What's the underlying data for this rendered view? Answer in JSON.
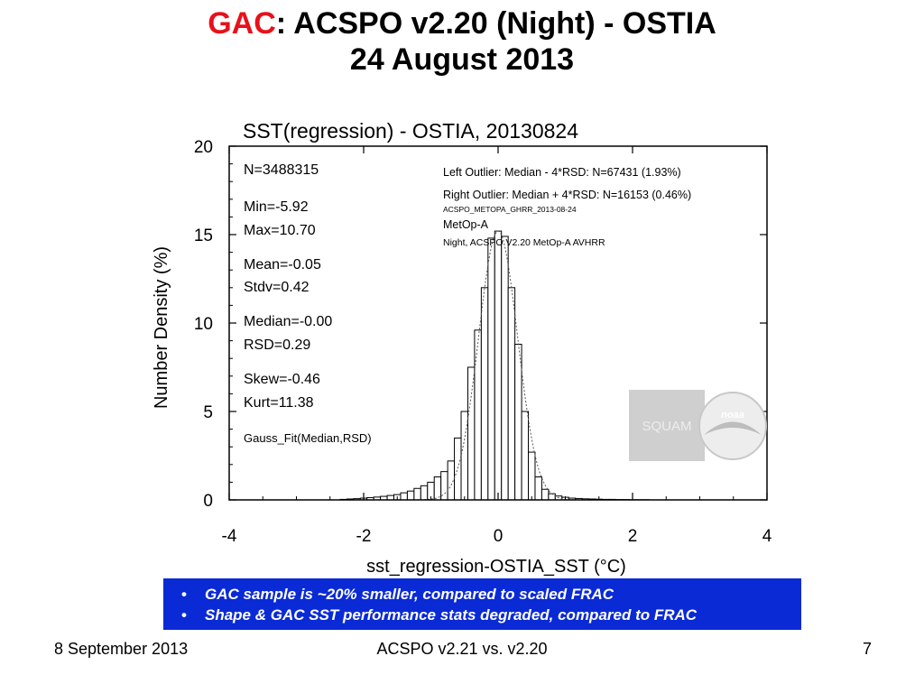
{
  "slide": {
    "title_highlight": "GAC",
    "title_rest": ": ACSPO v2.20 (Night) - OSTIA",
    "subtitle": "24 August 2013"
  },
  "chart_data": {
    "type": "bar",
    "title": "SST(regression) - OSTIA, 20130824",
    "xlabel": "sst_regression-OSTIA_SST (°C)",
    "ylabel": "Number Density (%)",
    "xlim": [
      -4,
      4
    ],
    "ylim": [
      0,
      20
    ],
    "xticks": [
      -4,
      -2,
      0,
      2,
      4
    ],
    "yticks": [
      0,
      5,
      10,
      15,
      20
    ],
    "bin_width": 0.1,
    "grid": false,
    "series": [
      {
        "x": [
          -2.3,
          -2.2,
          -2.1,
          -2.0,
          -1.9,
          -1.8,
          -1.7,
          -1.6,
          -1.5,
          -1.4,
          -1.3,
          -1.2,
          -1.1,
          -1.0,
          -0.9,
          -0.8,
          -0.7,
          -0.6,
          -0.5,
          -0.4,
          -0.3,
          -0.2,
          -0.1,
          0.0,
          0.1,
          0.2,
          0.3,
          0.4,
          0.5,
          0.6,
          0.7,
          0.8,
          0.9,
          1.0,
          1.1,
          1.2,
          1.3,
          1.4,
          1.5,
          1.6,
          1.7,
          1.8,
          1.9,
          2.0,
          2.1,
          2.2
        ],
        "values": [
          0.03,
          0.05,
          0.07,
          0.1,
          0.13,
          0.16,
          0.2,
          0.25,
          0.3,
          0.4,
          0.5,
          0.65,
          0.8,
          1.0,
          1.3,
          1.6,
          2.2,
          3.5,
          5.0,
          7.5,
          9.6,
          12.0,
          14.8,
          15.2,
          14.9,
          12.0,
          8.8,
          5.0,
          2.7,
          1.3,
          0.6,
          0.35,
          0.22,
          0.15,
          0.1,
          0.08,
          0.06,
          0.05,
          0.04,
          0.03,
          0.03,
          0.02,
          0.02,
          0.01,
          0.01,
          0.01
        ]
      }
    ],
    "gauss_fit": {
      "median": 0.0,
      "rsd": 0.29
    },
    "stats": [
      "N=3488315",
      "Min=-5.92",
      "Max=10.70",
      "Mean=-0.05",
      "Stdv=0.42",
      "Median=-0.00",
      "RSD=0.29",
      "Skew=-0.46",
      "Kurt=11.38"
    ],
    "fit_label": "Gauss_Fit(Median,RSD)",
    "info": {
      "left_outlier": "Left Outlier:  Median - 4*RSD: N=67431 (1.93%)",
      "right_outlier": "Right Outlier:  Median + 4*RSD: N=16153 (0.46%)",
      "file": "ACSPO_METOPA_GHRR_2013-08-24",
      "satellite": "MetOp-A",
      "description": "Night, ACSPO V2.20 MetOp-A AVHRR"
    },
    "logo_text": "SQUAM",
    "noaa_text": "noaa",
    "colors": {
      "bars": "#ffffff",
      "bar_stroke": "#000000",
      "fit_line": "#555555",
      "logo_bg": "#cfcfcf"
    }
  },
  "notes": [
    "GAC sample is ~20% smaller, compared to scaled FRAC",
    "Shape & GAC SST performance stats degraded, compared to FRAC"
  ],
  "footer": {
    "date": "8 September 2013",
    "center": "ACSPO v2.21 vs. v2.20",
    "page": "7"
  }
}
